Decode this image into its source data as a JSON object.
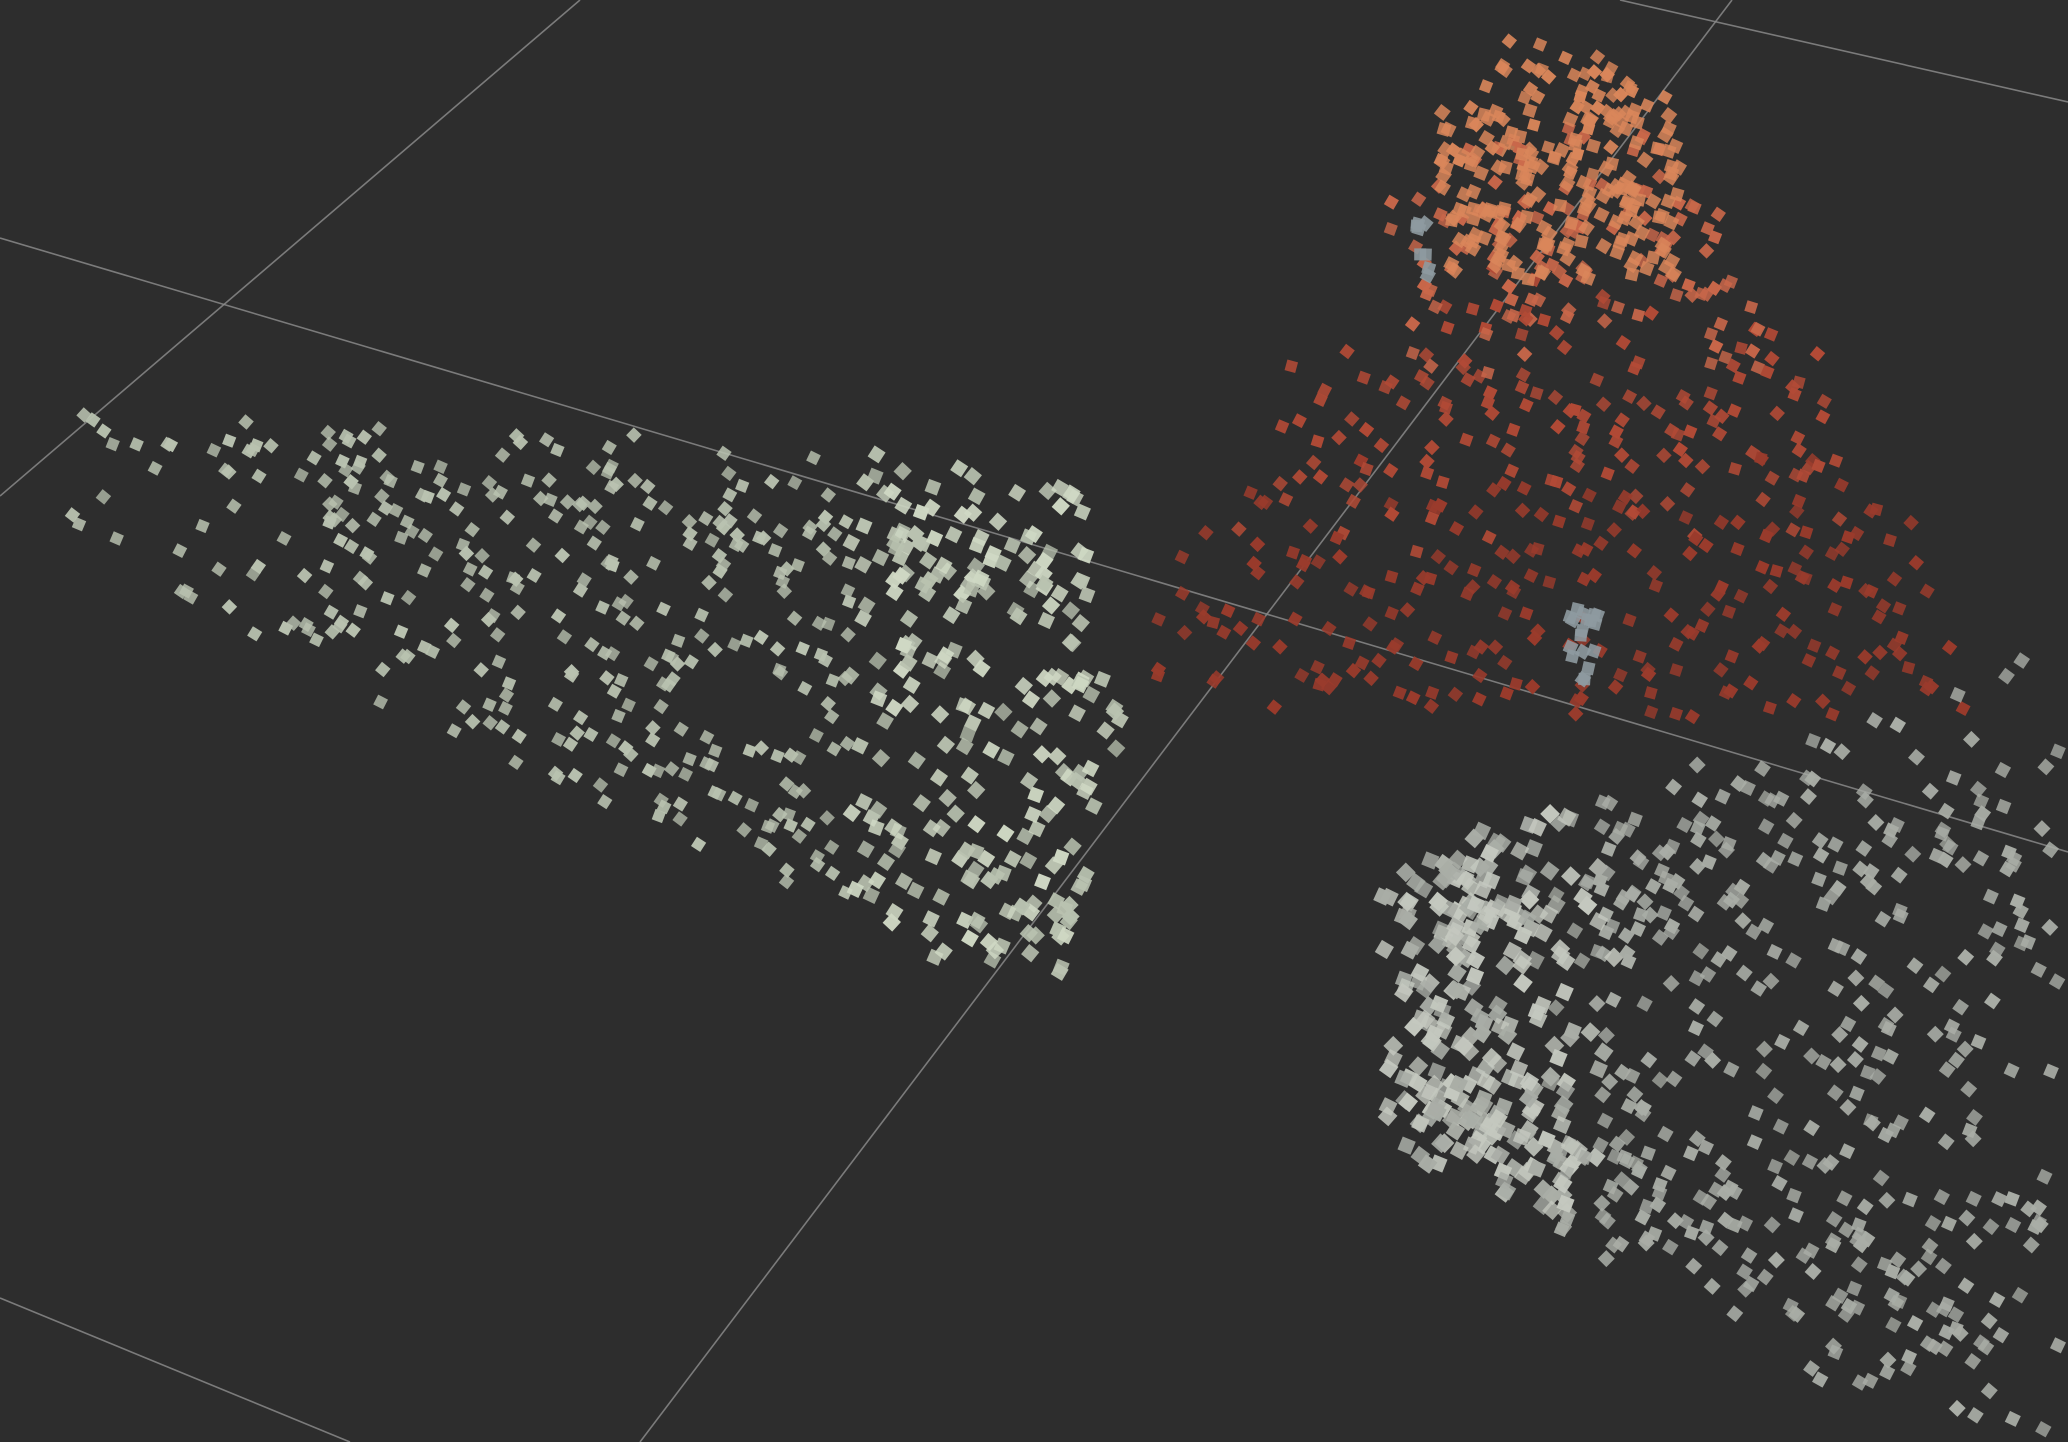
{
  "viewer": {
    "background_color": "#2d2d2d",
    "grid_color": "#8a8a8a",
    "grid_visible": true
  },
  "point_clouds": [
    {
      "name": "left-cluster",
      "color": "#b9c2b0",
      "highlight_color": "#cfd8c4"
    },
    {
      "name": "top-right-cluster",
      "colors": [
        "#d9865a",
        "#c9674a",
        "#b24a36",
        "#9a3b2c"
      ],
      "gray_color": "#8e9aa0"
    },
    {
      "name": "bottom-right-cluster",
      "color": "#a9ada6",
      "highlight_color": "#c4c8bf"
    }
  ]
}
